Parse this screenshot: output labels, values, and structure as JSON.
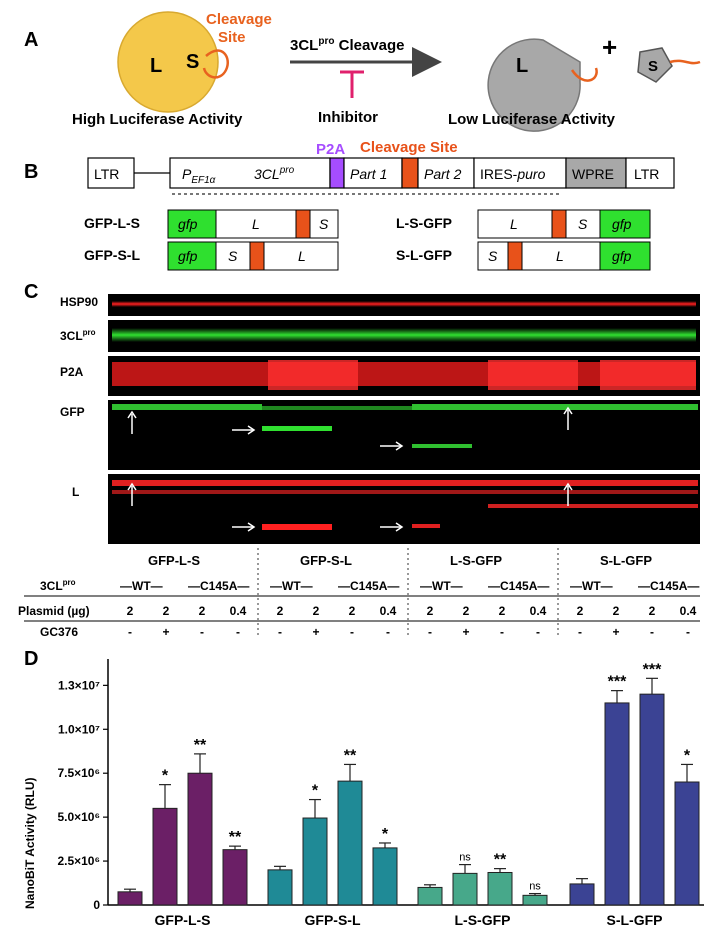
{
  "panel_a": {
    "label": "A",
    "left_large": "L",
    "left_small": "S",
    "cleavage_site_1": "Cleavage",
    "cleavage_site_2": "Site",
    "arrow_label_pre": "3CL",
    "arrow_label_sup": "pro",
    "arrow_label_post": " Cleavage",
    "inhibitor": "Inhibitor",
    "high_activity": "High Luciferase Activity",
    "low_activity": "Low Luciferase Activity",
    "right_large": "L",
    "plus": "+",
    "right_small": "S",
    "colors": {
      "large_bit_active": "#f4c84a",
      "inactive": "#a8a8a8",
      "site": "#e8621f",
      "inhibitor": "#e0206c"
    }
  },
  "panel_b": {
    "label": "B",
    "p2a": "P2A",
    "cleavage_site": "Cleavage Site",
    "ltr_left": "LTR",
    "pef_main": "P",
    "pef_sub": "EF1α",
    "cl3_main": "3CL",
    "cl3_sup": "pro",
    "part1": "Part 1",
    "part2": "Part 2",
    "ires_main": "IRES-",
    "ires_ital": "puro",
    "wpre": "WPRE",
    "ltr_right": "LTR",
    "constructs": [
      {
        "name": "GFP-L-S",
        "segments": [
          "gfp",
          "L",
          "",
          "S"
        ]
      },
      {
        "name": "L-S-GFP",
        "segments": [
          "L",
          "",
          "S",
          "gfp"
        ]
      },
      {
        "name": "GFP-S-L",
        "segments": [
          "gfp",
          "S",
          "",
          "L"
        ]
      },
      {
        "name": "S-L-GFP",
        "segments": [
          "S",
          "",
          "L",
          "gfp"
        ]
      }
    ],
    "colors": {
      "gfp": "#2fe02f",
      "site": "#e8521a",
      "p2a": "#a64dff",
      "wpre": "#a8a8a8"
    }
  },
  "panel_c": {
    "label": "C",
    "blots": [
      "HSP90",
      "3CL",
      "P2A",
      "GFP",
      "L"
    ],
    "blot_3cl_sup": "pro",
    "groups": [
      "GFP-L-S",
      "GFP-S-L",
      "L-S-GFP",
      "S-L-GFP"
    ],
    "row_3cl_main": "3CL",
    "row_3cl_sup": "pro",
    "wt": "—WT—",
    "c145a": "—C145A—",
    "row_plasmid": "Plasmid (µg)",
    "plasmid_values": [
      "2",
      "2",
      "2",
      "0.4"
    ],
    "row_gc376": "GC376",
    "gc376_values": [
      "-",
      "+",
      "-",
      "-"
    ]
  },
  "panel_d": {
    "label": "D"
  },
  "chart_data": {
    "type": "bar",
    "ylabel": "NanoBiT Activity (RLU)",
    "ylim": [
      0,
      14000000
    ],
    "yticks": [
      "0",
      "2.5×10⁶",
      "5.0×10⁶",
      "7.5×10⁶",
      "1.0×10⁷",
      "1.3×10⁷"
    ],
    "ytick_values": [
      0,
      2500000,
      5000000,
      7500000,
      10000000,
      12500000
    ],
    "categories": [
      "GFP-L-S",
      "GFP-S-L",
      "L-S-GFP",
      "S-L-GFP"
    ],
    "colors": [
      "#6b1f66",
      "#1f8a96",
      "#47a88a",
      "#3b4394"
    ],
    "groups": [
      {
        "name": "GFP-L-S",
        "values": [
          750000,
          5500000,
          7500000,
          3150000
        ],
        "errors": [
          150000,
          1350000,
          1100000,
          200000
        ],
        "sig": [
          "",
          "*",
          "**",
          "**"
        ]
      },
      {
        "name": "GFP-S-L",
        "values": [
          2000000,
          4950000,
          7050000,
          3250000
        ],
        "errors": [
          200000,
          1050000,
          950000,
          280000
        ],
        "sig": [
          "",
          "*",
          "**",
          "*"
        ]
      },
      {
        "name": "L-S-GFP",
        "values": [
          1000000,
          1800000,
          1850000,
          550000
        ],
        "errors": [
          150000,
          500000,
          220000,
          100000
        ],
        "sig": [
          "",
          "ns",
          "**",
          "ns"
        ]
      },
      {
        "name": "S-L-GFP",
        "values": [
          1200000,
          11500000,
          12000000,
          7000000
        ],
        "errors": [
          300000,
          700000,
          900000,
          1000000
        ],
        "sig": [
          "",
          "***",
          "***",
          "*"
        ]
      }
    ]
  }
}
